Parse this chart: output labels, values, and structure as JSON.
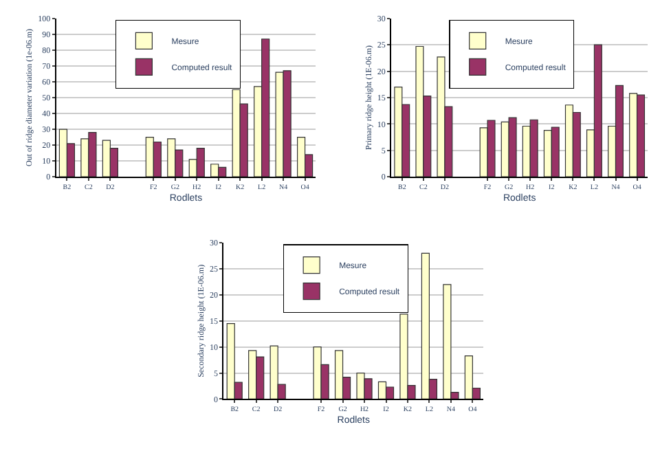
{
  "chart_data": [
    {
      "type": "bar",
      "xlabel": "Rodlets",
      "ylabel": "Out of ridge diameter variation (1e-06.m)",
      "categories": [
        "B2",
        "C2",
        "D2",
        null,
        "F2",
        "G2",
        "H2",
        "I2",
        "K2",
        "L2",
        "N4",
        "O4"
      ],
      "ylim": [
        0,
        100
      ],
      "yticks": [
        0,
        10,
        20,
        30,
        40,
        50,
        60,
        70,
        80,
        90,
        100
      ],
      "grid": "y",
      "legend": "top",
      "series": [
        {
          "name": "Mesure",
          "color": "#ffffcc",
          "values": [
            30,
            24,
            23,
            null,
            25,
            24,
            11,
            8,
            55,
            57,
            66,
            25
          ]
        },
        {
          "name": "Computed result",
          "color": "#993366",
          "values": [
            21,
            28,
            18,
            null,
            22,
            17,
            18,
            6,
            46,
            87,
            67,
            14
          ]
        }
      ]
    },
    {
      "type": "bar",
      "xlabel": "Rodlets",
      "ylabel": "Primary ridge height (1E-06.m)",
      "categories": [
        "B2",
        "C2",
        "D2",
        null,
        "F2",
        "G2",
        "H2",
        "I2",
        "K2",
        "L2",
        "N4",
        "O4"
      ],
      "ylim": [
        0,
        30
      ],
      "yticks": [
        0,
        5,
        10,
        15,
        20,
        25,
        30
      ],
      "grid": "y",
      "legend": "top",
      "series": [
        {
          "name": "Mesure",
          "color": "#ffffcc",
          "values": [
            17,
            24.7,
            22.7,
            null,
            9.3,
            10.4,
            9.6,
            8.8,
            13.6,
            8.9,
            9.6,
            15.8
          ]
        },
        {
          "name": "Computed result",
          "color": "#993366",
          "values": [
            13.7,
            15.3,
            13.3,
            null,
            10.7,
            11.2,
            10.8,
            9.4,
            12.2,
            25,
            17.3,
            15.5
          ]
        }
      ]
    },
    {
      "type": "bar",
      "xlabel": "Rodlets",
      "ylabel": "Secondary ridge height (1E-06.m)",
      "categories": [
        "B2",
        "C2",
        "D2",
        null,
        "F2",
        "G2",
        "H2",
        "I2",
        "K2",
        "L2",
        "N4",
        "O4"
      ],
      "ylim": [
        0,
        30
      ],
      "yticks": [
        0,
        5,
        10,
        15,
        20,
        25,
        30
      ],
      "grid": "y",
      "legend": "top",
      "series": [
        {
          "name": "Mesure",
          "color": "#ffffcc",
          "values": [
            14.5,
            9.3,
            10.2,
            null,
            10,
            9.3,
            5,
            3.3,
            16.3,
            28,
            22,
            8.3
          ]
        },
        {
          "name": "Computed result",
          "color": "#993366",
          "values": [
            3.2,
            8.1,
            2.8,
            null,
            6.6,
            4.2,
            3.9,
            2.3,
            2.6,
            3.8,
            1.3,
            2.1
          ]
        }
      ]
    }
  ]
}
